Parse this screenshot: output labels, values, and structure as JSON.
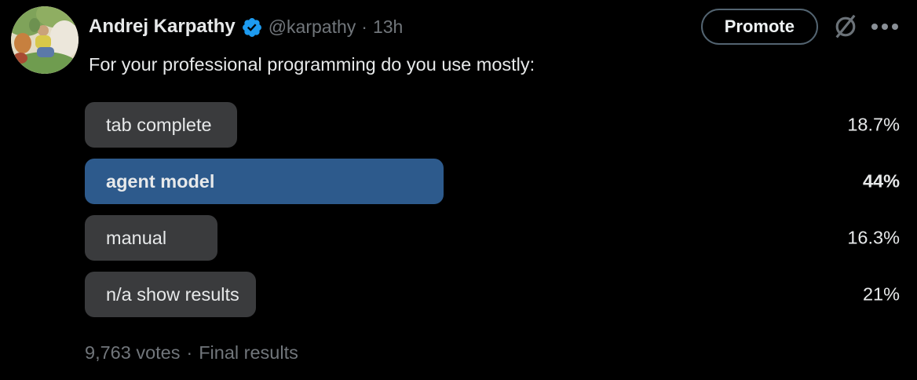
{
  "header": {
    "name": "Andrej Karpathy",
    "handle": "@karpathy",
    "separator": "·",
    "time": "13h",
    "promote_label": "Promote",
    "icons": {
      "verified": "verified-badge-icon",
      "grok": "grok-icon",
      "more": "more-ellipsis-icon"
    }
  },
  "tweet": {
    "text": "For your professional programming do you use mostly:"
  },
  "poll": {
    "options": [
      {
        "label": "tab complete",
        "percent_label": "18.7%",
        "percent_value": 18.7,
        "winner": false
      },
      {
        "label": "agent model",
        "percent_label": "44%",
        "percent_value": 44,
        "winner": true
      },
      {
        "label": "manual",
        "percent_label": "16.3%",
        "percent_value": 16.3,
        "winner": false
      },
      {
        "label": "n/a show results",
        "percent_label": "21%",
        "percent_value": 21,
        "winner": false
      }
    ],
    "meta": {
      "votes": "9,763 votes",
      "separator": "·",
      "status": "Final results"
    }
  },
  "colors": {
    "background": "#000000",
    "text_primary": "#e7e9ea",
    "text_secondary": "#71767b",
    "bar_gray": "#3a3b3d",
    "bar_blue": "#2d5a8c",
    "badge_blue": "#1d9bf0",
    "button_border": "#536471"
  }
}
